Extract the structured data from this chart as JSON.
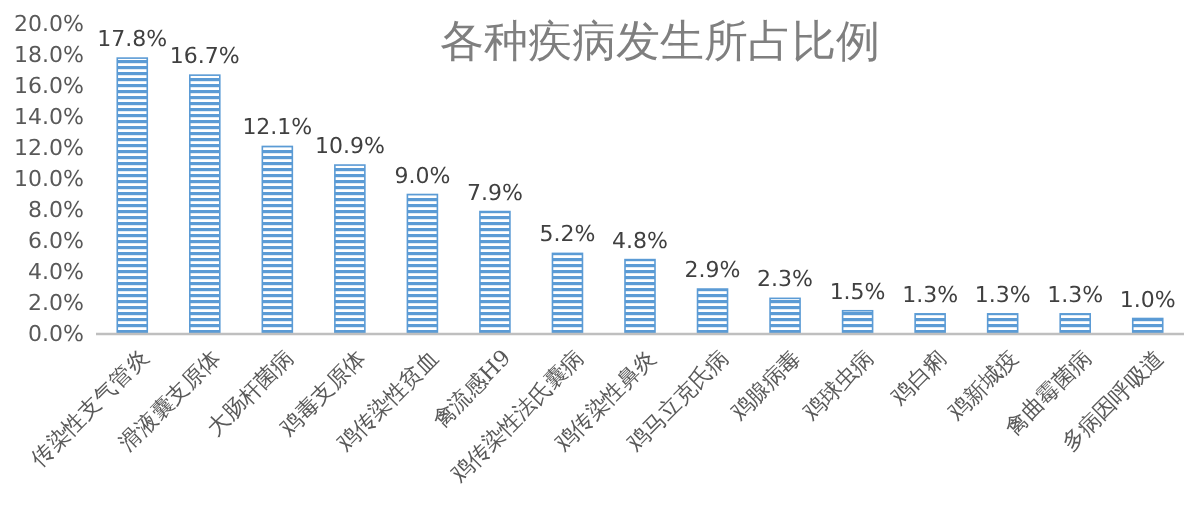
{
  "chart_data": {
    "type": "bar",
    "title": "各种疾病发生所占比例",
    "categories": [
      "传染性支气管炎",
      "滑液囊支原体",
      "大肠杆菌病",
      "鸡毒支原体",
      "鸡传染性贫血",
      "禽流感H9",
      "鸡传染性法氏囊病",
      "鸡传染性鼻炎",
      "鸡马立克氏病",
      "鸡腺病毒",
      "鸡球虫病",
      "鸡白痢",
      "鸡新城疫",
      "禽曲霉菌病",
      "多病因呼吸道"
    ],
    "values": [
      17.8,
      16.7,
      12.1,
      10.9,
      9.0,
      7.9,
      5.2,
      4.8,
      2.9,
      2.3,
      1.5,
      1.3,
      1.3,
      1.3,
      1.0
    ],
    "value_labels": [
      "17.8%",
      "16.7%",
      "12.1%",
      "10.9%",
      "9.0%",
      "7.9%",
      "5.2%",
      "4.8%",
      "2.9%",
      "2.3%",
      "1.5%",
      "1.3%",
      "1.3%",
      "1.3%",
      "1.0%"
    ],
    "color": "#5b9bd5",
    "ylim": [
      0,
      20
    ],
    "yticks": [
      {
        "value": 0,
        "label": "0.0%"
      },
      {
        "value": 2,
        "label": "2.0%"
      },
      {
        "value": 4,
        "label": "4.0%"
      },
      {
        "value": 6,
        "label": "6.0%"
      },
      {
        "value": 8,
        "label": "8.0%"
      },
      {
        "value": 10,
        "label": "10.0%"
      },
      {
        "value": 12,
        "label": "12.0%"
      },
      {
        "value": 14,
        "label": "14.0%"
      },
      {
        "value": 16,
        "label": "16.0%"
      },
      {
        "value": 18,
        "label": "18.0%"
      },
      {
        "value": 20,
        "label": "20.0%"
      }
    ],
    "grid": false
  }
}
